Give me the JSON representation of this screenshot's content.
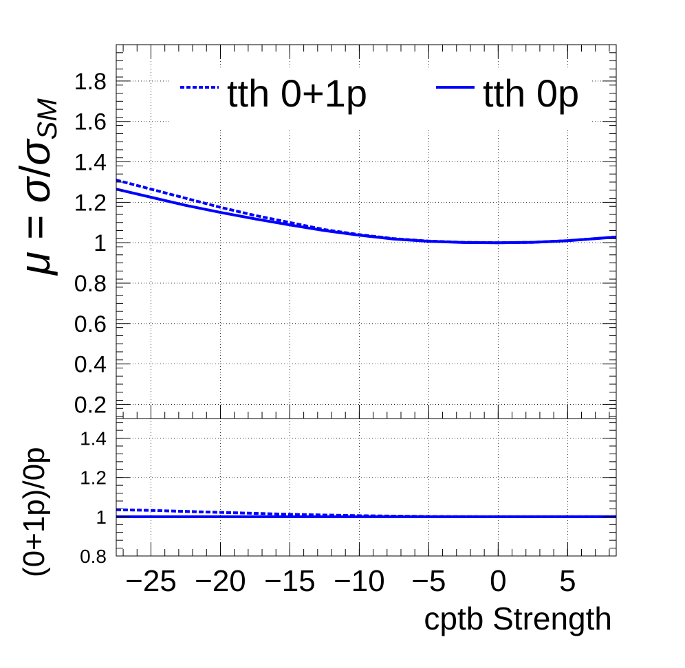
{
  "chart_data": [
    {
      "type": "line",
      "panel": "main",
      "ylabel": "μ = σ/σSM",
      "ylabel_parts": {
        "mu": "μ",
        "eq": " = ",
        "sigma1": "σ",
        "slash": "/",
        "sigma2": "σ",
        "sub": "SM"
      },
      "xlim": [
        -27.5,
        8.5
      ],
      "ylim": [
        0.13,
        1.98
      ],
      "yticks": [
        0.2,
        0.4,
        0.6,
        0.8,
        1,
        1.2,
        1.4,
        1.6,
        1.8
      ],
      "ytick_labels": [
        "0.2",
        "0.4",
        "0.6",
        "0.8",
        "1",
        "1.2",
        "1.4",
        "1.6",
        "1.8"
      ],
      "grid": true,
      "legend_placement": "top",
      "series": [
        {
          "name": "tth 0+1p",
          "style": "dashed",
          "color": "#0000ff",
          "x": [
            -27.5,
            -25,
            -22.5,
            -20,
            -17.5,
            -15,
            -12.5,
            -10,
            -7.5,
            -5,
            -2.5,
            0,
            2.5,
            5,
            8.5
          ],
          "y": [
            1.31,
            1.265,
            1.22,
            1.175,
            1.135,
            1.1,
            1.065,
            1.04,
            1.02,
            1.008,
            1.002,
            1.0,
            1.002,
            1.01,
            1.028
          ]
        },
        {
          "name": "tth 0p",
          "style": "solid",
          "color": "#0000ff",
          "x": [
            -27.5,
            -25,
            -22.5,
            -20,
            -17.5,
            -15,
            -12.5,
            -10,
            -7.5,
            -5,
            -2.5,
            0,
            2.5,
            5,
            8.5
          ],
          "y": [
            1.265,
            1.225,
            1.185,
            1.15,
            1.118,
            1.088,
            1.06,
            1.037,
            1.018,
            1.007,
            1.001,
            1.0,
            1.002,
            1.01,
            1.028
          ]
        }
      ]
    },
    {
      "type": "line",
      "panel": "ratio",
      "xlabel": "cptb Strength",
      "ylabel": "(0+1p)/0p",
      "xlim": [
        -27.5,
        8.5
      ],
      "ylim": [
        0.8,
        1.5
      ],
      "xticks": [
        -25,
        -20,
        -15,
        -10,
        -5,
        0,
        5
      ],
      "xtick_labels": [
        "−25",
        "−20",
        "−15",
        "−10",
        "−5",
        "0",
        "5"
      ],
      "yticks": [
        0.8,
        1,
        1.2,
        1.4
      ],
      "ytick_labels": [
        "0.8",
        "1",
        "1.2",
        "1.4"
      ],
      "grid": true,
      "series": [
        {
          "style": "dashed",
          "color": "#0000ff",
          "x": [
            -27.5,
            -25,
            -20,
            -15,
            -10,
            -5,
            0,
            5,
            8.5
          ],
          "y": [
            1.036,
            1.032,
            1.022,
            1.012,
            1.005,
            1.001,
            1.0,
            1.0,
            1.0
          ]
        },
        {
          "style": "solid",
          "color": "#0000ff",
          "x": [
            -27.5,
            8.5
          ],
          "y": [
            1.0,
            1.0
          ]
        }
      ]
    }
  ]
}
